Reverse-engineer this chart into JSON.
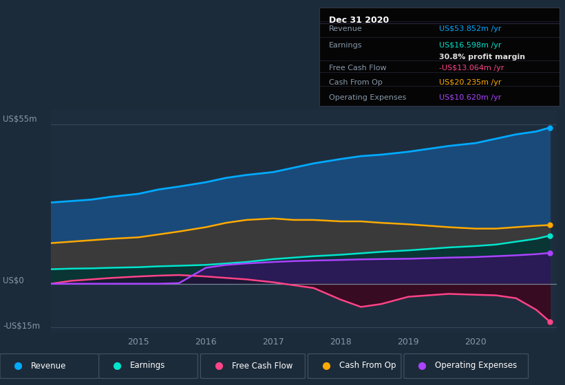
{
  "bg_color": "#1c2b3a",
  "plot_bg_color": "#1e2d3d",
  "colors": {
    "revenue": "#00aaff",
    "earnings": "#00e5cc",
    "free_cash_flow": "#ff4488",
    "cash_from_op": "#ffaa00",
    "operating_expenses": "#aa44ff"
  },
  "ylim": [
    -17,
    60
  ],
  "xlim": [
    2013.7,
    2021.2
  ],
  "x_ticks": [
    2015,
    2016,
    2017,
    2018,
    2019,
    2020
  ],
  "revenue_x": [
    2013.7,
    2014.0,
    2014.3,
    2014.6,
    2015.0,
    2015.3,
    2015.6,
    2016.0,
    2016.3,
    2016.6,
    2017.0,
    2017.3,
    2017.6,
    2018.0,
    2018.3,
    2018.6,
    2019.0,
    2019.3,
    2019.6,
    2020.0,
    2020.3,
    2020.6,
    2020.9,
    2021.1
  ],
  "revenue_y": [
    28.0,
    28.5,
    29.0,
    30.0,
    31.0,
    32.5,
    33.5,
    35.0,
    36.5,
    37.5,
    38.5,
    40.0,
    41.5,
    43.0,
    44.0,
    44.5,
    45.5,
    46.5,
    47.5,
    48.5,
    50.0,
    51.5,
    52.5,
    53.852
  ],
  "earnings_x": [
    2013.7,
    2014.0,
    2014.3,
    2014.6,
    2015.0,
    2015.3,
    2015.6,
    2016.0,
    2016.3,
    2016.6,
    2017.0,
    2017.3,
    2017.6,
    2018.0,
    2018.3,
    2018.6,
    2019.0,
    2019.3,
    2019.6,
    2020.0,
    2020.3,
    2020.6,
    2020.9,
    2021.1
  ],
  "earnings_y": [
    5.0,
    5.2,
    5.3,
    5.5,
    5.7,
    6.0,
    6.2,
    6.5,
    7.0,
    7.5,
    8.5,
    9.0,
    9.5,
    10.0,
    10.5,
    11.0,
    11.5,
    12.0,
    12.5,
    13.0,
    13.5,
    14.5,
    15.5,
    16.598
  ],
  "fcf_x": [
    2013.7,
    2014.0,
    2014.3,
    2014.6,
    2015.0,
    2015.3,
    2015.6,
    2016.0,
    2016.3,
    2016.6,
    2017.0,
    2017.3,
    2017.6,
    2018.0,
    2018.3,
    2018.6,
    2019.0,
    2019.3,
    2019.6,
    2020.0,
    2020.3,
    2020.6,
    2020.9,
    2021.1
  ],
  "fcf_y": [
    0.0,
    1.0,
    1.5,
    2.0,
    2.5,
    2.8,
    3.0,
    2.5,
    2.0,
    1.5,
    0.5,
    -0.5,
    -1.5,
    -5.5,
    -8.0,
    -7.0,
    -4.5,
    -4.0,
    -3.5,
    -3.8,
    -4.0,
    -5.0,
    -9.0,
    -13.064
  ],
  "cop_x": [
    2013.7,
    2014.0,
    2014.3,
    2014.6,
    2015.0,
    2015.3,
    2015.6,
    2016.0,
    2016.3,
    2016.6,
    2017.0,
    2017.3,
    2017.6,
    2018.0,
    2018.3,
    2018.6,
    2019.0,
    2019.3,
    2019.6,
    2020.0,
    2020.3,
    2020.6,
    2020.9,
    2021.1
  ],
  "cop_y": [
    14.0,
    14.5,
    15.0,
    15.5,
    16.0,
    17.0,
    18.0,
    19.5,
    21.0,
    22.0,
    22.5,
    22.0,
    22.0,
    21.5,
    21.5,
    21.0,
    20.5,
    20.0,
    19.5,
    19.0,
    19.0,
    19.5,
    20.0,
    20.235
  ],
  "opex_x": [
    2013.7,
    2014.0,
    2014.3,
    2014.6,
    2015.0,
    2015.3,
    2015.6,
    2016.0,
    2016.3,
    2016.6,
    2017.0,
    2017.3,
    2017.6,
    2018.0,
    2018.3,
    2018.6,
    2019.0,
    2019.3,
    2019.6,
    2020.0,
    2020.3,
    2020.6,
    2020.9,
    2021.1
  ],
  "opex_y": [
    0.0,
    0.0,
    0.0,
    0.0,
    0.0,
    0.0,
    0.2,
    5.5,
    6.5,
    7.0,
    7.5,
    7.8,
    8.0,
    8.2,
    8.4,
    8.5,
    8.6,
    8.8,
    9.0,
    9.2,
    9.5,
    9.8,
    10.2,
    10.62
  ]
}
